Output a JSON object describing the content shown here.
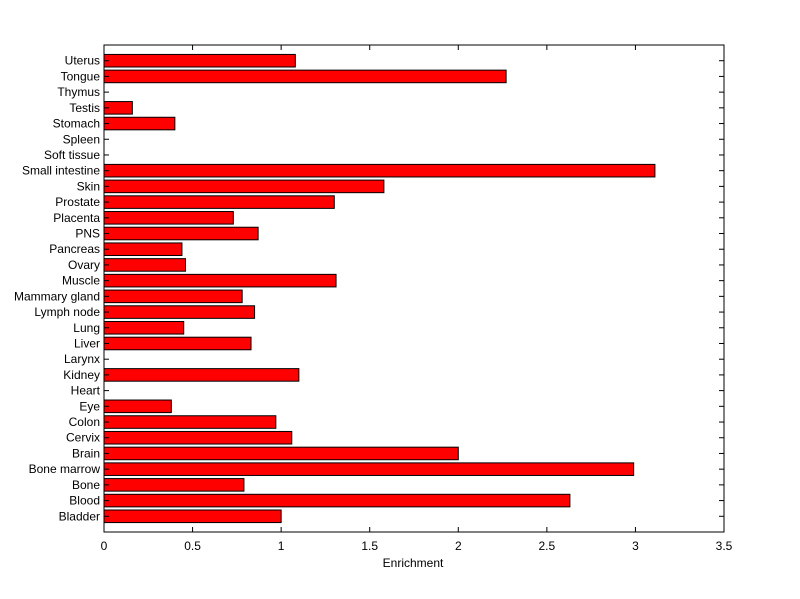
{
  "chart_data": {
    "type": "bar",
    "orientation": "horizontal",
    "xlabel": "Enrichment",
    "xlim": [
      0,
      3.5
    ],
    "x_ticks": [
      "0",
      "0.5",
      "1",
      "1.5",
      "2",
      "2.5",
      "3",
      "3.5"
    ],
    "x_tick_values": [
      0,
      0.5,
      1,
      1.5,
      2,
      2.5,
      3,
      3.5
    ],
    "grid": false,
    "bar_color": "#ff0000",
    "categories": [
      "Uterus",
      "Tongue",
      "Thymus",
      "Testis",
      "Stomach",
      "Spleen",
      "Soft tissue",
      "Small intestine",
      "Skin",
      "Prostate",
      "Placenta",
      "PNS",
      "Pancreas",
      "Ovary",
      "Muscle",
      "Mammary gland",
      "Lymph node",
      "Lung",
      "Liver",
      "Larynx",
      "Kidney",
      "Heart",
      "Eye",
      "Colon",
      "Cervix",
      "Brain",
      "Bone marrow",
      "Bone",
      "Blood",
      "Bladder"
    ],
    "values": [
      1.08,
      2.27,
      0,
      0.16,
      0.4,
      0,
      0,
      3.11,
      1.58,
      1.3,
      0.73,
      0.87,
      0.44,
      0.46,
      1.31,
      0.78,
      0.85,
      0.45,
      0.83,
      0,
      1.1,
      0,
      0.38,
      0.97,
      1.06,
      2.0,
      2.99,
      0.79,
      2.63,
      1.0
    ]
  }
}
